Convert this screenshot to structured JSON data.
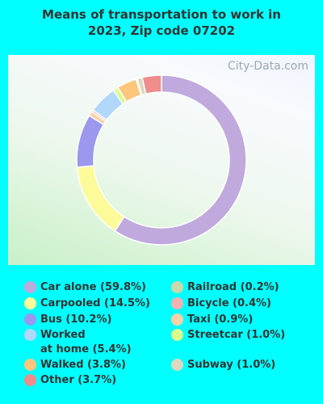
{
  "chart_data": {
    "type": "donut",
    "title": "Means of transportation to work in\n2023, Zip code 07202",
    "watermark": "City-Data.com",
    "categories": [
      "Car alone (59.8%)",
      "Carpooled (14.5%)",
      "Bus (10.2%)",
      "Taxi (0.9%)",
      "Bicycle (0.4%)",
      "Worked\nat home (5.4%)",
      "Streetcar (1.0%)",
      "Walked (3.8%)",
      "Railroad (0.2%)",
      "Subway (1.0%)",
      "Other (3.7%)"
    ],
    "values": [
      59.8,
      14.5,
      10.2,
      0.9,
      0.4,
      5.4,
      1.0,
      3.8,
      0.2,
      1.0,
      3.7
    ],
    "colors": [
      "#c0a9dd",
      "#fdfb99",
      "#9b98ee",
      "#fad0a6",
      "#f4b1b1",
      "#b1d7fb",
      "#d9fc8f",
      "#fcc67d",
      "#c9d8aa",
      "#ddd8bf",
      "#ef8c8c"
    ]
  }
}
